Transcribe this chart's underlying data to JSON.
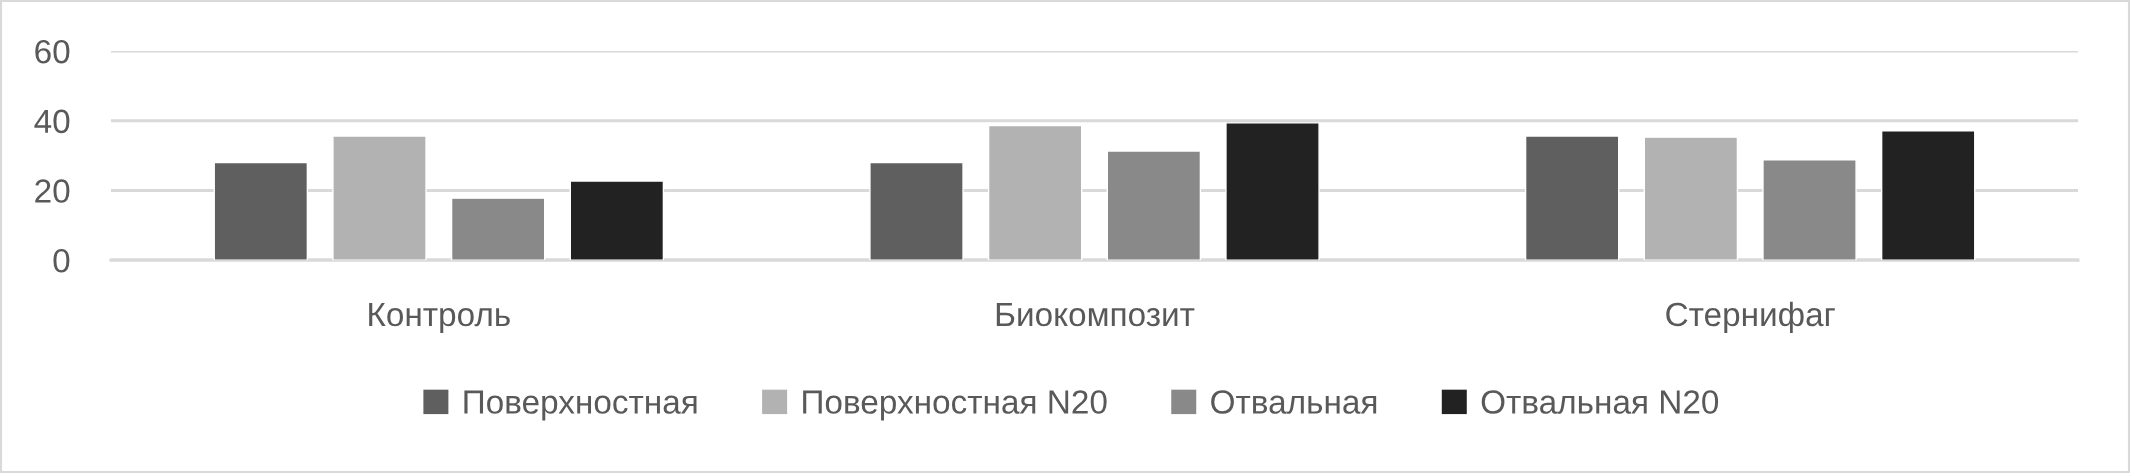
{
  "chart_data": {
    "type": "bar",
    "categories": [
      "Контроль",
      "Биокомпозит",
      "Стернифаг"
    ],
    "series": [
      {
        "name": "Поверхностная",
        "color": "#5f5f5f",
        "values": [
          28,
          28,
          35.6
        ]
      },
      {
        "name": "Поверхностная N20",
        "color": "#b2b2b2",
        "values": [
          35.6,
          38.6,
          35.3
        ]
      },
      {
        "name": "Отвальная",
        "color": "#898989",
        "values": [
          17.8,
          31.3,
          28.8
        ]
      },
      {
        "name": "Отвальная N20",
        "color": "#222222",
        "values": [
          22.7,
          39.4,
          37.1
        ]
      }
    ],
    "ylim": [
      0,
      60
    ],
    "yticks": [
      0,
      20,
      40,
      60
    ],
    "grid": "y",
    "legend": "bottom"
  }
}
